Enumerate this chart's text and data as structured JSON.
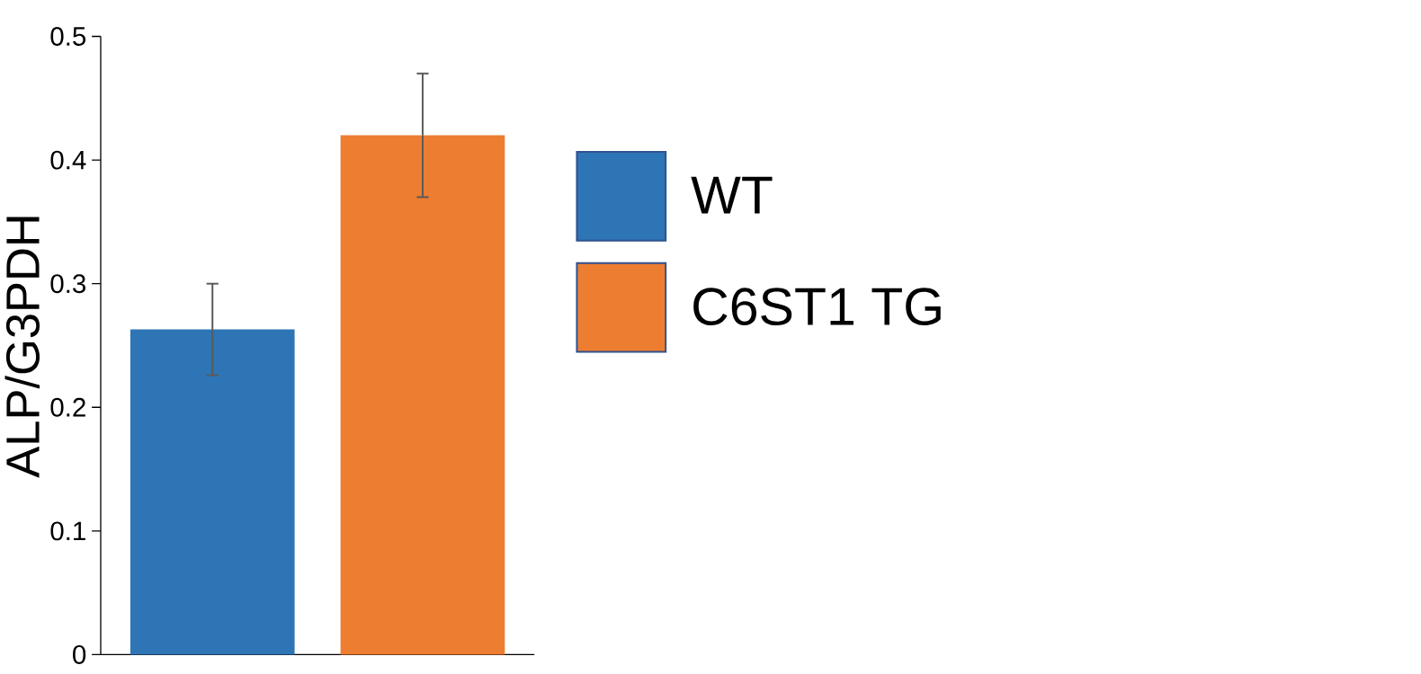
{
  "chart_data": {
    "type": "bar",
    "ylabel": "ALP/G3PDH",
    "categories": [
      null
    ],
    "series": [
      {
        "name": "WT",
        "color": "#2e75b6",
        "values": [
          0.263
        ],
        "errors": [
          0.037
        ]
      },
      {
        "name": "C6ST1 TG",
        "color": "#ed7d31",
        "values": [
          0.42
        ],
        "errors": [
          0.05
        ]
      }
    ],
    "ylim": [
      0,
      0.5
    ],
    "yticks": [
      0,
      0.1,
      0.2,
      0.3,
      0.4,
      0.5
    ],
    "legend": "right"
  }
}
